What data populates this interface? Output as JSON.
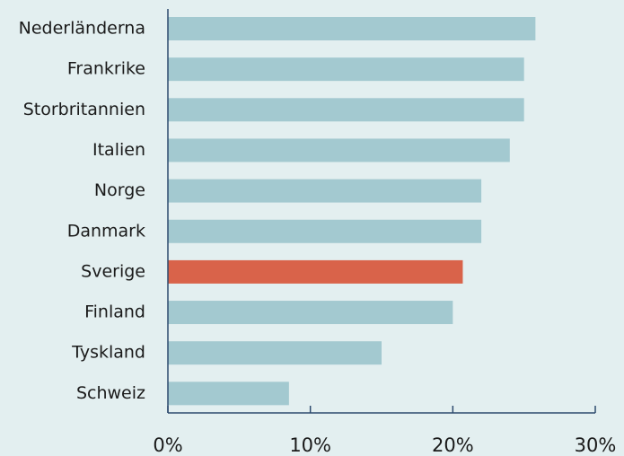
{
  "chart_data": {
    "type": "barh",
    "categories": [
      "Nederländerna",
      "Frankrike",
      "Storbritannien",
      "Italien",
      "Norge",
      "Danmark",
      "Sverige",
      "Finland",
      "Tyskland",
      "Schweiz"
    ],
    "values": [
      25.8,
      25,
      25,
      24,
      22,
      22,
      20.7,
      20,
      15,
      8.5
    ],
    "colors": [
      "#a3c9d0",
      "#a3c9d0",
      "#a3c9d0",
      "#a3c9d0",
      "#a3c9d0",
      "#a3c9d0",
      "#d9634a",
      "#a3c9d0",
      "#a3c9d0",
      "#a3c9d0"
    ],
    "xlim": [
      0,
      30
    ],
    "xticks": [
      {
        "value": 0,
        "label": "0%"
      },
      {
        "value": 10,
        "label": "10%"
      },
      {
        "value": 20,
        "label": "20%"
      },
      {
        "value": 30,
        "label": "30%"
      }
    ],
    "grid": false
  }
}
